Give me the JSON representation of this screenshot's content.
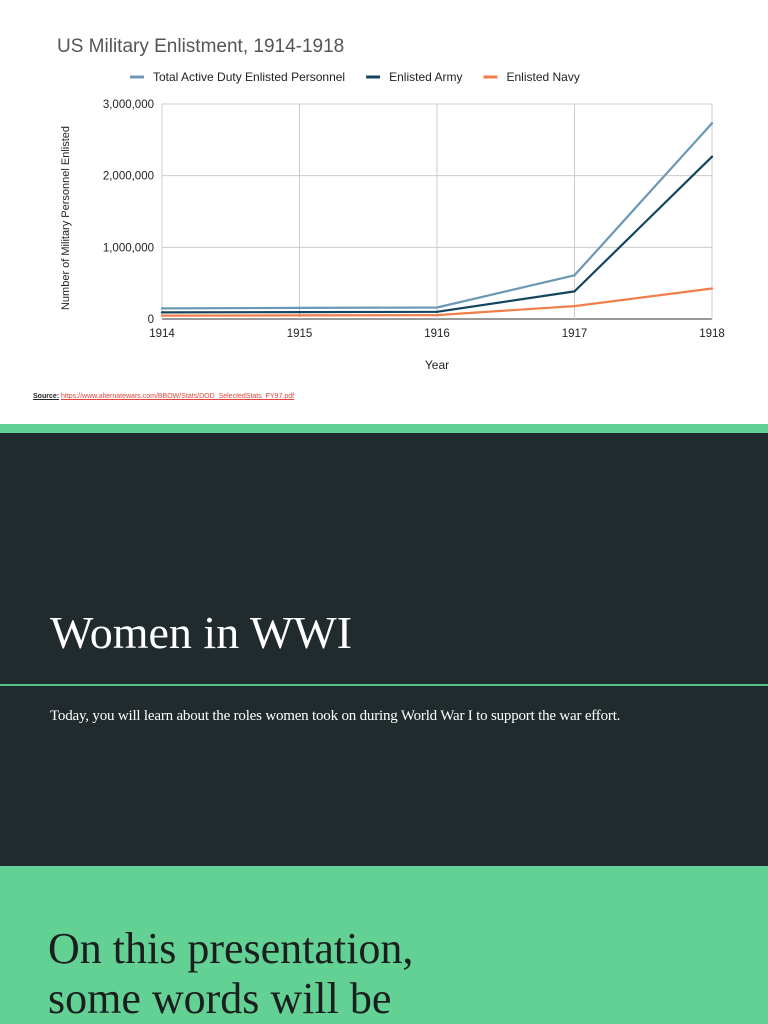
{
  "chart_slide": {
    "source_label": "Source:",
    "source_link": "https://www.alternatewars.com/BBOW/Stats/DOD_SelectedStats_FY97.pdf"
  },
  "chart_data": {
    "type": "line",
    "title": "US Military Enlistment, 1914-1918",
    "xlabel": "Year",
    "ylabel": "Number of Military Personnel Enlisted",
    "x": [
      1914,
      1915,
      1916,
      1917,
      1918
    ],
    "x_tick_labels": [
      "1914",
      "1915",
      "1916",
      "1917",
      "1918"
    ],
    "ylim": [
      0,
      3000000
    ],
    "y_ticks": [
      0,
      1000000,
      2000000,
      3000000
    ],
    "y_tick_labels": [
      "0",
      "1,000,000",
      "2,000,000",
      "3,000,000"
    ],
    "grid": true,
    "legend_position": "top",
    "series": [
      {
        "name": "Total Active Duty Enlisted Personnel",
        "color": "#6b98b5",
        "values": [
          148000,
          155000,
          160000,
          610000,
          2730000
        ]
      },
      {
        "name": "Enlisted Army",
        "color": "#14455f",
        "values": [
          92000,
          96000,
          100000,
          385000,
          2265000
        ]
      },
      {
        "name": "Enlisted Navy",
        "color": "#f27e4b",
        "values": [
          48000,
          50000,
          55000,
          180000,
          425000
        ]
      }
    ]
  },
  "intro_slide": {
    "title": "Women in WWI",
    "subtitle": "Today, you will learn about the roles women took on during World War I to support the war effort."
  },
  "note_slide": {
    "line1": "On this presentation,",
    "line2": "some words will be"
  },
  "colors": {
    "accent_green": "#62d193",
    "dark_slide": "#212a2c"
  }
}
